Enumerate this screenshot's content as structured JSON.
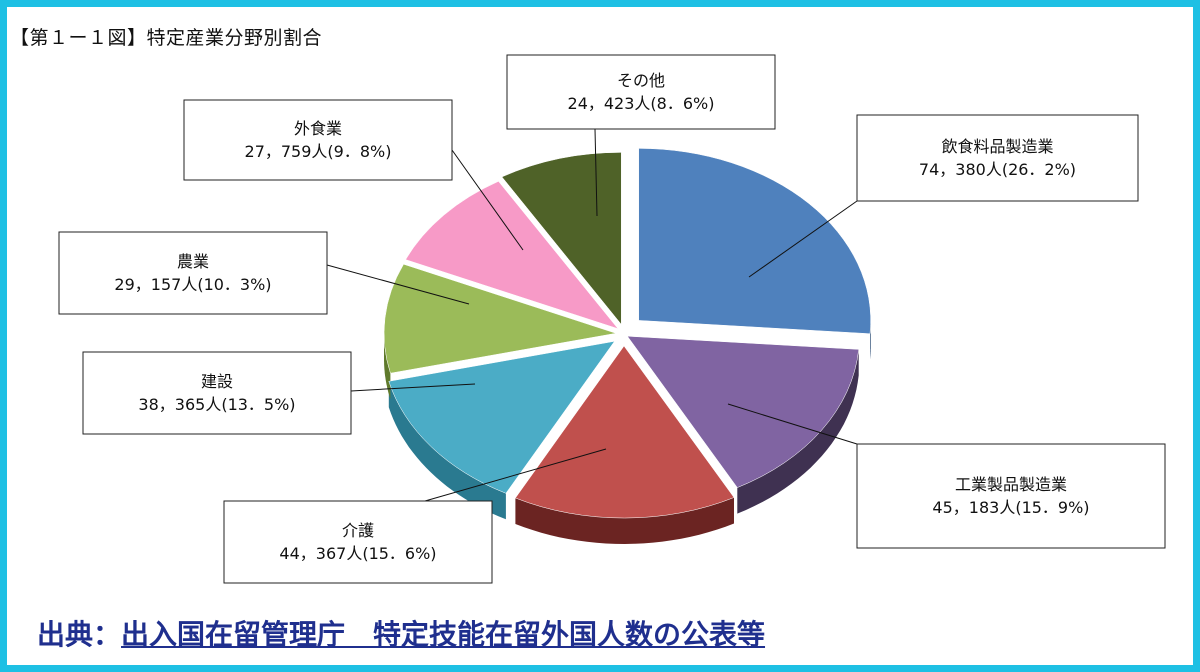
{
  "title": "【第１ー１図】特定産業分野別割合",
  "source": {
    "prefix": "出典：",
    "link_text": "出入国在留管理庁　特定技能在留外国人数の公表等"
  },
  "chart_data": {
    "type": "pie",
    "slices": [
      {
        "name": "飲食料品製造業",
        "value_text": "74，380人(26．2%)",
        "value": 74380,
        "percent": 26.2,
        "color": "#4f81bd",
        "side": "#2c4d75"
      },
      {
        "name": "工業製品製造業",
        "value_text": "45，183人(15．9%)",
        "value": 45183,
        "percent": 15.9,
        "color": "#8064a2",
        "side": "#3f3151"
      },
      {
        "name": "介護",
        "value_text": "44，367人(15．6%)",
        "value": 44367,
        "percent": 15.6,
        "color": "#c0504d",
        "side": "#6b2422"
      },
      {
        "name": "建設",
        "value_text": "38，365人(13．5%)",
        "value": 38365,
        "percent": 13.5,
        "color": "#4bacc6",
        "side": "#2a7a90"
      },
      {
        "name": "農業",
        "value_text": "29，157人(10．3%)",
        "value": 29157,
        "percent": 10.3,
        "color": "#9bbb59",
        "side": "#5f7a2c"
      },
      {
        "name": "外食業",
        "value_text": "27，759人(9．8%)",
        "value": 27759,
        "percent": 9.8,
        "color": "#f79ac7",
        "side": "#b0557f"
      },
      {
        "name": "その他",
        "value_text": "24，423人(8．6%)",
        "value": 24423,
        "percent": 8.6,
        "color": "#4f6228",
        "side": "#2c3a14"
      }
    ]
  }
}
